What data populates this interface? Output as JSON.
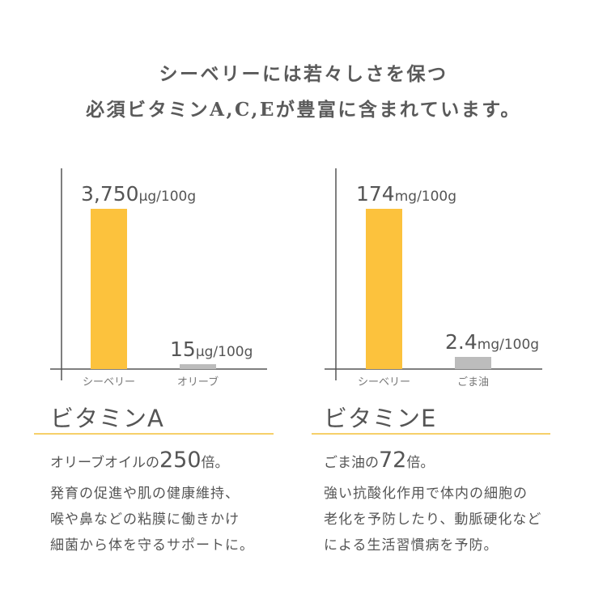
{
  "headline": {
    "line1": "シーベリーには若々しさを保つ",
    "line2": "必須ビタミンA,C,Eが豊富に含まれています。"
  },
  "colors": {
    "seaberry_bar": "#fcc23d",
    "comparison_bar": "#bcbcbc",
    "underline": "#f6d06a",
    "axis": "#555555"
  },
  "chart_data": [
    {
      "type": "bar",
      "categories": [
        "シーベリー",
        "オリーブ"
      ],
      "values": [
        3750,
        15
      ],
      "unit": "μg/100g",
      "value_labels": [
        {
          "number": "3,750",
          "unit": "μg/100g"
        },
        {
          "number": "15",
          "unit": "μg/100g"
        }
      ],
      "bar_colors": [
        "#fcc23d",
        "#bcbcbc"
      ],
      "grid": false
    },
    {
      "type": "bar",
      "categories": [
        "シーベリー",
        "ごま油"
      ],
      "values": [
        174,
        2.4
      ],
      "unit": "mg/100g",
      "value_labels": [
        {
          "number": "174",
          "unit": "mg/100g"
        },
        {
          "number": "2.4",
          "unit": "mg/100g"
        }
      ],
      "bar_colors": [
        "#fcc23d",
        "#bcbcbc"
      ],
      "grid": false
    }
  ],
  "sections": [
    {
      "title": "ビタミンA",
      "summary_pre": "オリーブオイルの",
      "summary_num": "250",
      "summary_post": "倍。",
      "desc": [
        "発育の促進や肌の健康維持、",
        "喉や鼻などの粘膜に働きかけ",
        "細菌から体を守るサポートに。"
      ]
    },
    {
      "title": "ビタミンE",
      "summary_pre": "ごま油の",
      "summary_num": "72",
      "summary_post": "倍。",
      "desc": [
        "強い抗酸化作用で体内の細胞の",
        "老化を予防したり、動脈硬化など",
        "による生活習慣病を予防。"
      ]
    }
  ]
}
